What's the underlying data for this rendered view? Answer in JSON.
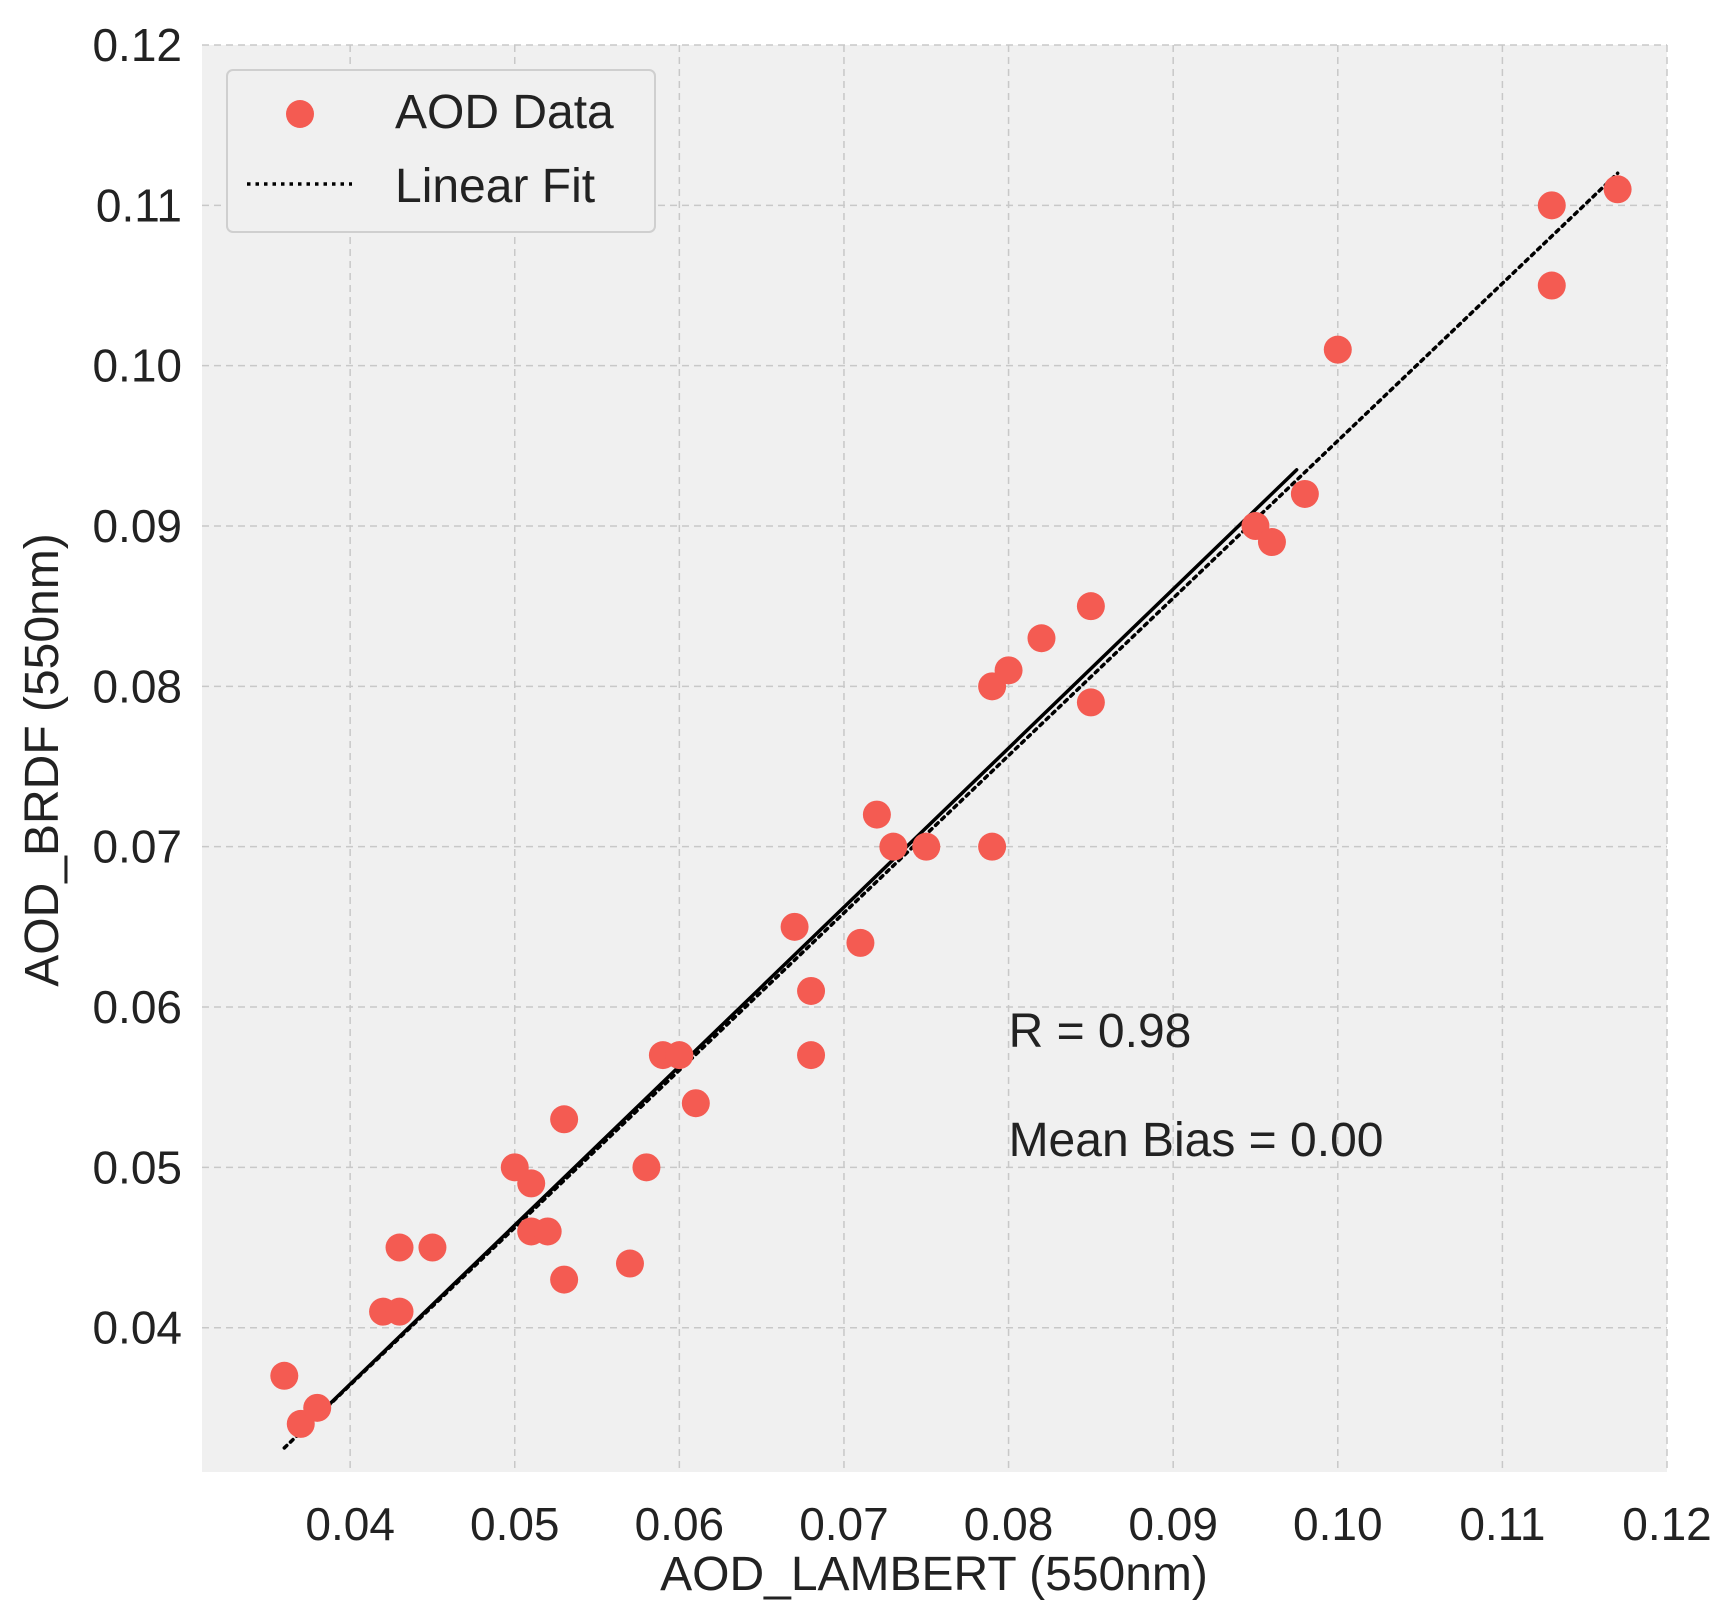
{
  "chart_data": {
    "type": "scatter",
    "xlabel": "AOD_LAMBERT (550nm)",
    "ylabel": "AOD_BRDF (550nm)",
    "xlim": [
      0.031,
      0.12
    ],
    "ylim": [
      0.031,
      0.12
    ],
    "xticks": [
      0.04,
      0.05,
      0.06,
      0.07,
      0.08,
      0.09,
      0.1,
      0.11,
      0.12
    ],
    "xtick_labels": [
      "0.04",
      "0.05",
      "0.06",
      "0.07",
      "0.08",
      "0.09",
      "0.10",
      "0.11",
      "0.12"
    ],
    "yticks": [
      0.04,
      0.05,
      0.06,
      0.07,
      0.08,
      0.09,
      0.1,
      0.11,
      0.12
    ],
    "ytick_labels": [
      "0.04",
      "0.05",
      "0.06",
      "0.07",
      "0.08",
      "0.09",
      "0.10",
      "0.11",
      "0.12"
    ],
    "grid": true,
    "legend_position": "top-left",
    "series": [
      {
        "name": "AOD Data",
        "kind": "scatter",
        "color": "#f45b52",
        "points": [
          [
            0.036,
            0.037
          ],
          [
            0.037,
            0.034
          ],
          [
            0.038,
            0.035
          ],
          [
            0.042,
            0.041
          ],
          [
            0.043,
            0.041
          ],
          [
            0.043,
            0.045
          ],
          [
            0.045,
            0.045
          ],
          [
            0.05,
            0.05
          ],
          [
            0.051,
            0.049
          ],
          [
            0.051,
            0.046
          ],
          [
            0.052,
            0.046
          ],
          [
            0.053,
            0.043
          ],
          [
            0.053,
            0.053
          ],
          [
            0.057,
            0.044
          ],
          [
            0.058,
            0.05
          ],
          [
            0.059,
            0.057
          ],
          [
            0.06,
            0.057
          ],
          [
            0.061,
            0.054
          ],
          [
            0.067,
            0.065
          ],
          [
            0.068,
            0.061
          ],
          [
            0.068,
            0.057
          ],
          [
            0.071,
            0.064
          ],
          [
            0.072,
            0.072
          ],
          [
            0.073,
            0.07
          ],
          [
            0.075,
            0.07
          ],
          [
            0.079,
            0.07
          ],
          [
            0.079,
            0.08
          ],
          [
            0.08,
            0.081
          ],
          [
            0.082,
            0.083
          ],
          [
            0.085,
            0.085
          ],
          [
            0.085,
            0.079
          ],
          [
            0.095,
            0.09
          ],
          [
            0.096,
            0.089
          ],
          [
            0.098,
            0.092
          ],
          [
            0.1,
            0.101
          ],
          [
            0.113,
            0.11
          ],
          [
            0.113,
            0.105
          ],
          [
            0.117,
            0.111
          ]
        ]
      },
      {
        "name": "Linear Fit",
        "kind": "line",
        "style": "dotted",
        "color": "#000000",
        "points": [
          [
            0.036,
            0.0325
          ],
          [
            0.117,
            0.112
          ]
        ]
      },
      {
        "name": "",
        "kind": "line",
        "style": "solid",
        "color": "#000000",
        "points": [
          [
            0.037,
            0.0335
          ],
          [
            0.0975,
            0.0935
          ]
        ]
      }
    ],
    "annotations": [
      {
        "text": "R = 0.98",
        "x": 0.08,
        "y": 0.0575
      },
      {
        "text": "Mean Bias = 0.00",
        "x": 0.08,
        "y": 0.0507
      }
    ]
  }
}
